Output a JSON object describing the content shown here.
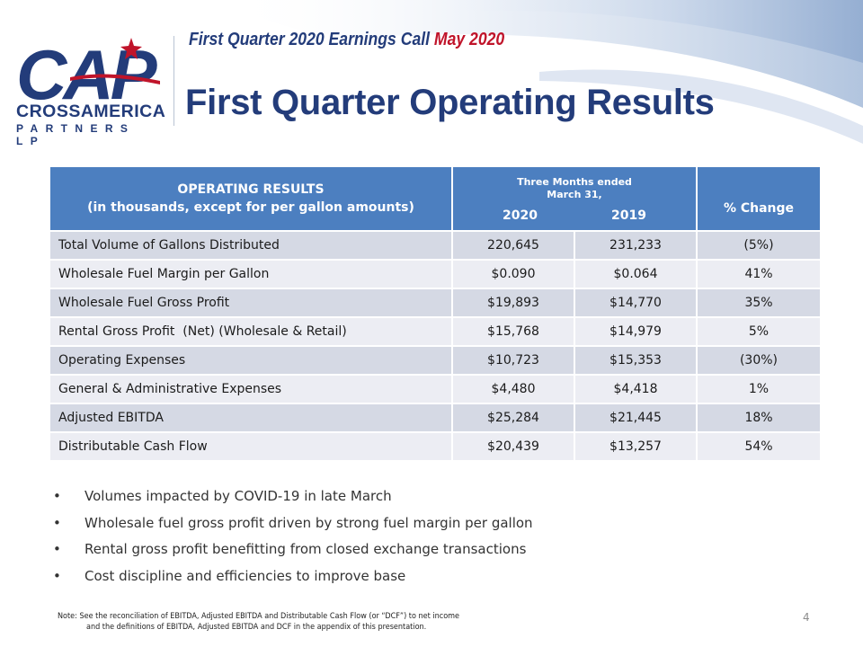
{
  "header": {
    "subtitle_part1": "First Quarter 2020 Earnings Call",
    "subtitle_part2": "May 2020",
    "title": "First Quarter Operating Results"
  },
  "logo": {
    "letters": "CAP",
    "name": "CROSSAMERICA",
    "sub": "PARTNERS LP",
    "colors": {
      "navy": "#233c7a",
      "red": "#c0142a"
    }
  },
  "table": {
    "header": {
      "col1_line1": "OPERATING RESULTS",
      "col1_line2": "(in thousands, except for per gallon amounts)",
      "period_line1": "Three Months ended",
      "period_line2": "March 31,",
      "year1": "2020",
      "year2": "2019",
      "change": "% Change"
    },
    "rows": [
      {
        "metric": "Total Volume of Gallons Distributed",
        "v2020": "220,645",
        "v2019": "231,233",
        "change": "(5%)"
      },
      {
        "metric": "Wholesale Fuel Margin per Gallon",
        "v2020": "$0.090",
        "v2019": "$0.064",
        "change": "41%"
      },
      {
        "metric": "Wholesale Fuel Gross Profit",
        "v2020": "$19,893",
        "v2019": "$14,770",
        "change": "35%"
      },
      {
        "metric": "Rental Gross Profit  (Net) (Wholesale & Retail)",
        "v2020": "$15,768",
        "v2019": "$14,979",
        "change": "5%"
      },
      {
        "metric": "Operating Expenses",
        "v2020": "$10,723",
        "v2019": "$15,353",
        "change": "(30%)"
      },
      {
        "metric": "General & Administrative Expenses",
        "v2020": "$4,480",
        "v2019": "$4,418",
        "change": "1%"
      },
      {
        "metric": "Adjusted EBITDA",
        "v2020": "$25,284",
        "v2019": "$21,445",
        "change": "18%"
      },
      {
        "metric": "Distributable Cash Flow",
        "v2020": "$20,439",
        "v2019": "$13,257",
        "change": "54%"
      }
    ],
    "colors": {
      "header_bg": "#4c7fc0",
      "row_dark": "#d5d9e4",
      "row_light": "#ecedf3"
    }
  },
  "bullets": [
    "Volumes impacted by COVID-19 in late March",
    "Wholesale fuel gross profit driven by strong fuel margin per gallon",
    "Rental gross profit benefitting from closed exchange transactions",
    "Cost discipline and efficiencies to improve base"
  ],
  "note": {
    "line1": "Note: See the reconciliation of EBITDA, Adjusted EBITDA and Distributable Cash Flow (or “DCF”) to net income",
    "line2": "and the definitions of EBITDA, Adjusted EBITDA and DCF in the appendix of this presentation."
  },
  "page_number": "4"
}
